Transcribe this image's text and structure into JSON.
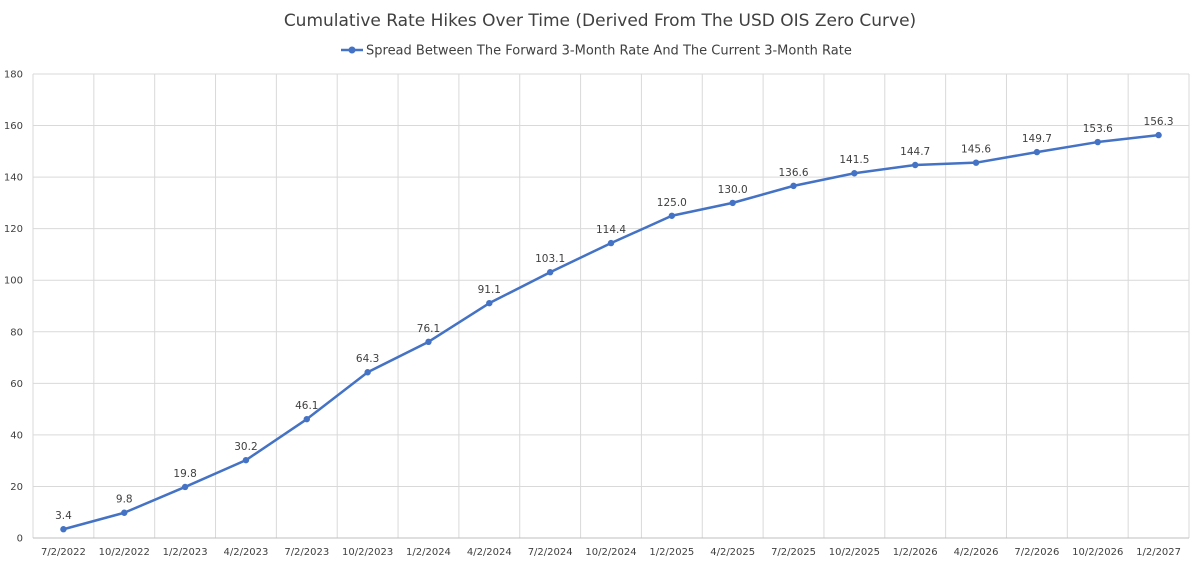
{
  "chart_data": {
    "type": "line",
    "title": "Cumulative Rate Hikes Over Time (Derived From The USD OIS Zero Curve)",
    "xlabel": "",
    "ylabel": "",
    "ylim": [
      0,
      180
    ],
    "yticks": [
      0,
      20,
      40,
      60,
      80,
      100,
      120,
      140,
      160,
      180
    ],
    "grid": true,
    "legend_position": "top-center",
    "x": [
      "7/2/2022",
      "10/2/2022",
      "1/2/2023",
      "4/2/2023",
      "7/2/2023",
      "10/2/2023",
      "1/2/2024",
      "4/2/2024",
      "7/2/2024",
      "10/2/2024",
      "1/2/2025",
      "4/2/2025",
      "7/2/2025",
      "10/2/2025",
      "1/2/2026",
      "4/2/2026",
      "7/2/2026",
      "10/2/2026",
      "1/2/2027"
    ],
    "series": [
      {
        "name": "Spread Between The Forward 3-Month Rate And The Current 3-Month Rate",
        "color": "#4472c4",
        "values": [
          3.4,
          9.8,
          19.8,
          30.2,
          46.1,
          64.3,
          76.1,
          91.1,
          103.1,
          114.4,
          125.0,
          130.0,
          136.6,
          141.5,
          144.7,
          145.6,
          149.7,
          153.6,
          156.3
        ],
        "data_labels": [
          "3.4",
          "9.8",
          "19.8",
          "30.2",
          "46.1",
          "64.3",
          "76.1",
          "91.1",
          "103.1",
          "114.4",
          "125.0",
          "130.0",
          "136.6",
          "141.5",
          "144.7",
          "145.6",
          "149.7",
          "153.6",
          "156.3"
        ]
      }
    ]
  }
}
